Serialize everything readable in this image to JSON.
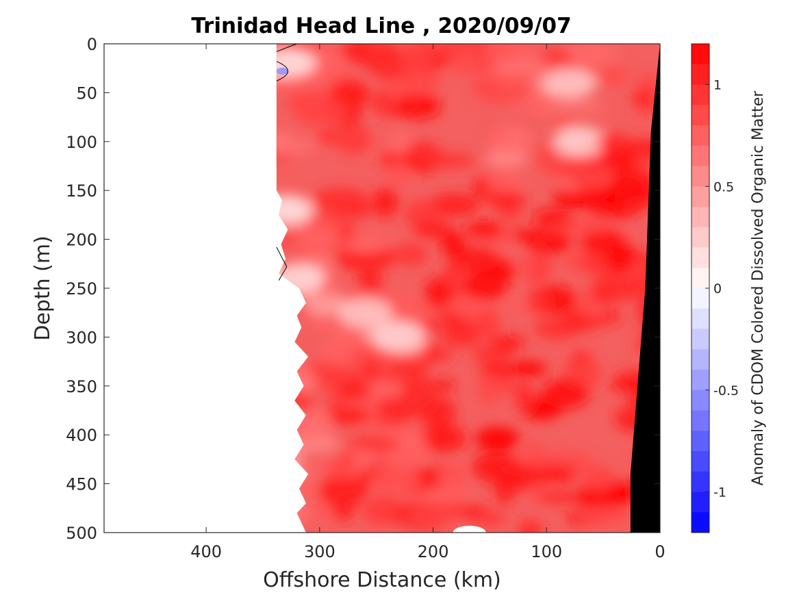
{
  "chart_data": {
    "type": "heatmap",
    "title": "Trinidad Head Line , 2020/09/07",
    "xlabel": "Offshore Distance (km)",
    "ylabel": "Depth (m)",
    "x_direction": "reversed",
    "y_direction": "reversed",
    "xlim": [
      490,
      0
    ],
    "ylim": [
      0,
      500
    ],
    "xticks": [
      400,
      300,
      200,
      100,
      0
    ],
    "yticks": [
      0,
      50,
      100,
      150,
      200,
      250,
      300,
      350,
      400,
      450,
      500
    ],
    "data_extent_x": [
      338,
      0
    ],
    "colorbar": {
      "label": "Anomaly of CDOM Colored Dissolved Organic Matter",
      "range": [
        -1.2,
        1.2
      ],
      "ticks": [
        1,
        0.5,
        0,
        -0.5,
        -1
      ],
      "tick_labels": [
        "1",
        "0.5",
        "0",
        "-0.5",
        "-1"
      ],
      "levels": 24,
      "colormap": "blue-white-red",
      "low_color": "#0000ff",
      "mid_color": "#ffffff",
      "high_color": "#ff0000"
    },
    "features": {
      "bathymetry_color": "#000000",
      "no_data_color": "#ffffff"
    },
    "grid": false,
    "colorbar_position": "right"
  }
}
